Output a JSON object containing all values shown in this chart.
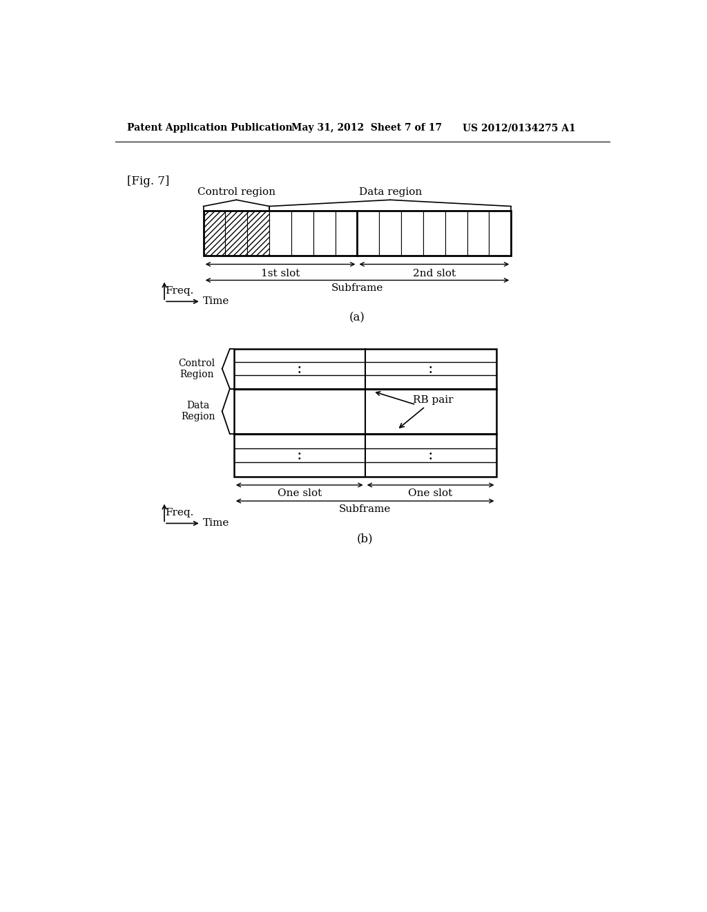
{
  "background_color": "#ffffff",
  "header_left": "Patent Application Publication",
  "header_mid": "May 31, 2012  Sheet 7 of 17",
  "header_right": "US 2012/0134275 A1",
  "fig_label": "[Fig. 7]",
  "diagram_a": {
    "label": "(a)",
    "control_region_label": "Control region",
    "data_region_label": "Data region",
    "slot1_label": "1st slot",
    "slot2_label": "2nd slot",
    "subframe_label": "Subframe",
    "freq_label": "Freq.",
    "time_label": "Time",
    "n_total_cols": 14,
    "n_hatched_cols": 3
  },
  "diagram_b": {
    "label": "(b)",
    "control_region_label": "Control\nRegion",
    "data_region_label": "Data\nRegion",
    "slot1_label": "One slot",
    "slot2_label": "One slot",
    "subframe_label": "Subframe",
    "freq_label": "Freq.",
    "time_label": "Time",
    "rb_pair_label": "RB pair"
  }
}
